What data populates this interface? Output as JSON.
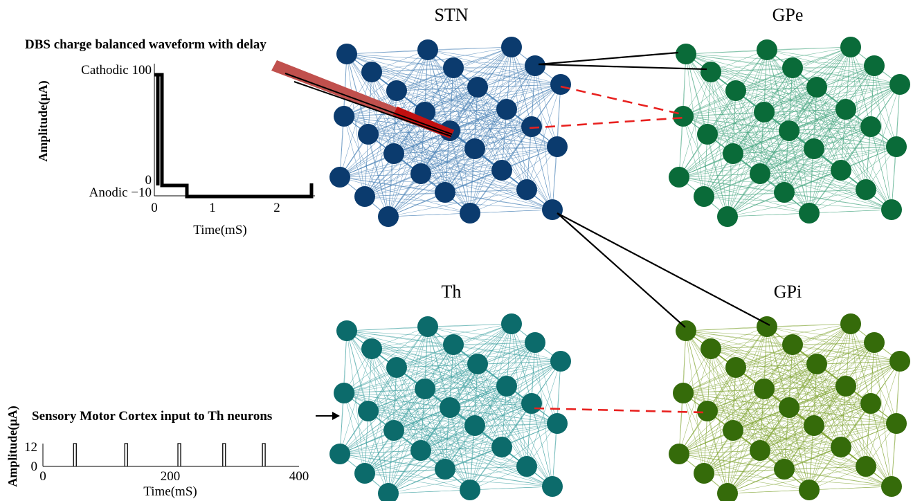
{
  "networks": [
    {
      "key": "stn",
      "title": "STN",
      "color": "#0b3b6e",
      "edge": "#4f86b8"
    },
    {
      "key": "gpe",
      "title": "GPe",
      "color": "#0a6b39",
      "edge": "#4daa86"
    },
    {
      "key": "th",
      "title": "Th",
      "color": "#0c6b6b",
      "edge": "#48a6a6"
    },
    {
      "key": "gpi",
      "title": "GPi",
      "color": "#356b0a",
      "edge": "#86a83b"
    }
  ],
  "dbs_panel": {
    "caption": "DBS charge balanced waveform with delay",
    "ylabel": "Amplitude(μA)",
    "xlabel": "Time(mS)",
    "cathodic_label": "Cathodic 100",
    "zero_label": "0",
    "anodic_label": "Anodic −10",
    "xticks": [
      "0",
      "1",
      "2"
    ],
    "electrode_color": "#c0504d"
  },
  "cortex_panel": {
    "caption": "Sensory Motor Cortex input to Th neurons",
    "ylabel": "Amplitude(μA)",
    "xlabel": "Time(mS)",
    "yticks": [
      "12",
      "0"
    ],
    "xticks": [
      "0",
      "200",
      "400"
    ],
    "pulse_times": [
      50,
      130,
      213,
      283,
      345
    ]
  },
  "connection_colors": {
    "excitatory": "#000000",
    "inhibitory": "#e8211f"
  }
}
